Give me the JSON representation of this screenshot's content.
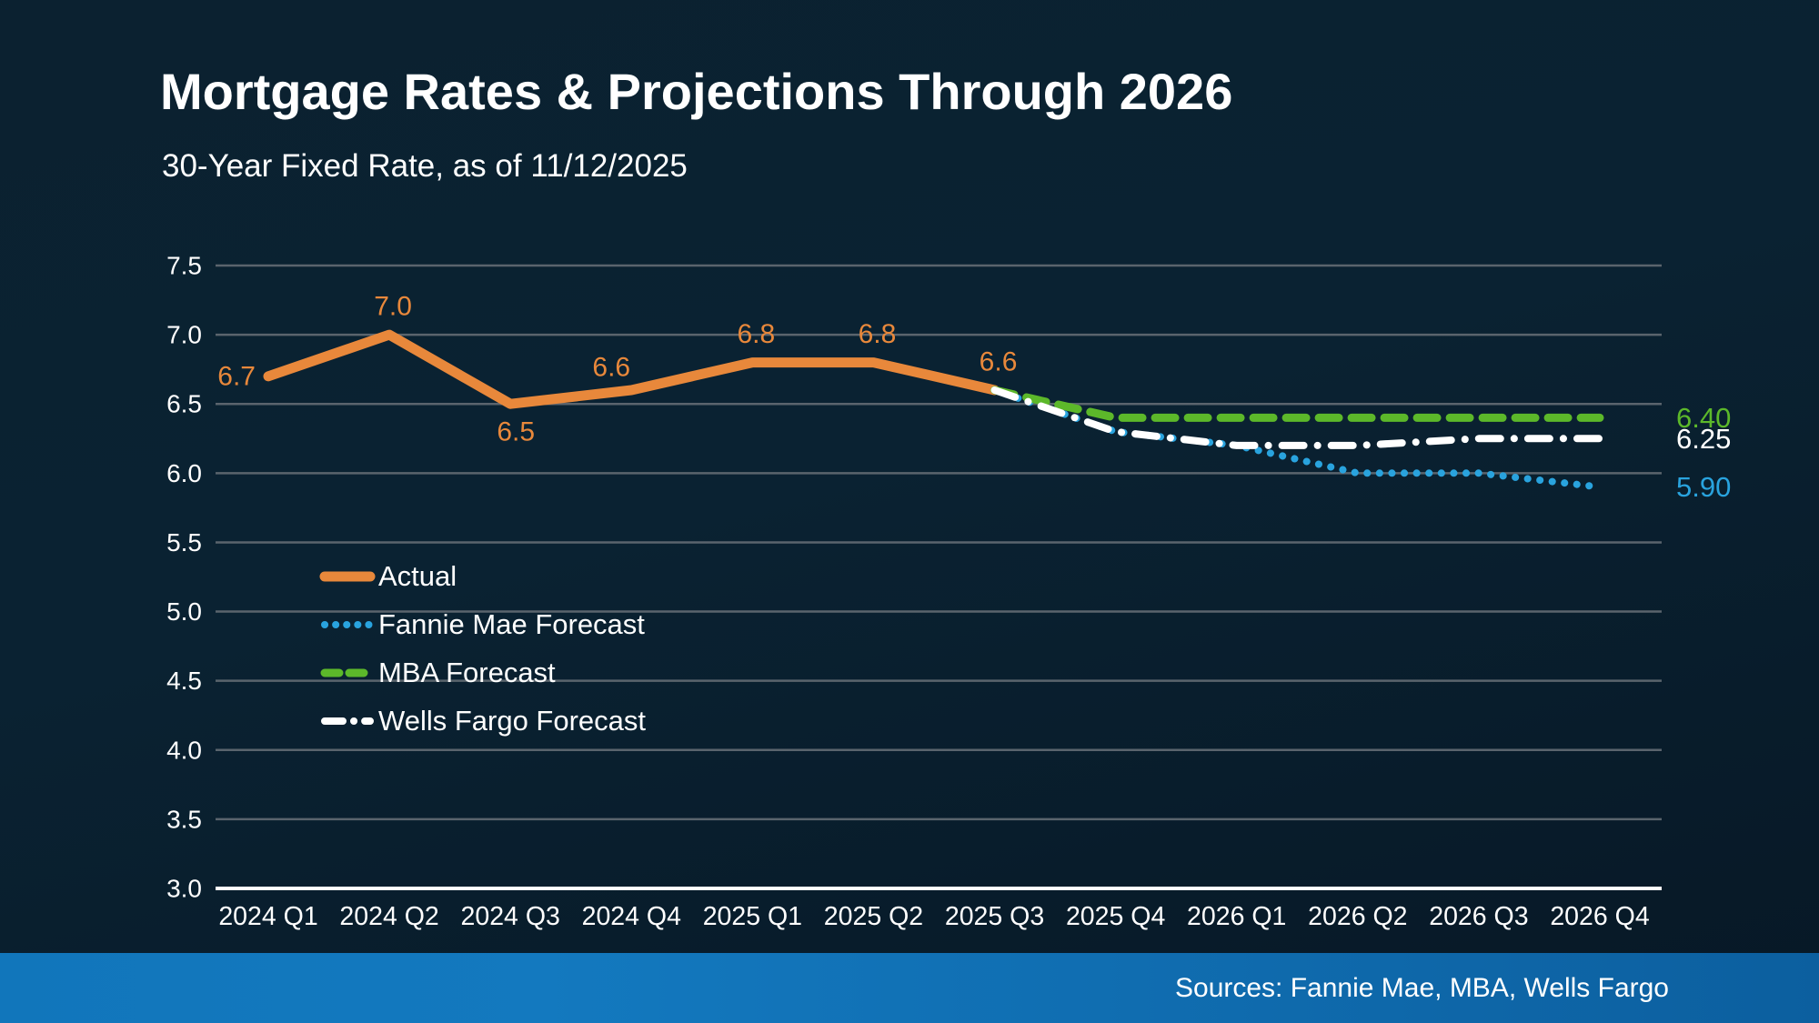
{
  "header": {
    "title": "Mortgage Rates & Projections Through 2026",
    "subtitle": "30-Year Fixed Rate, as of 11/12/2025"
  },
  "footer": {
    "sources": "Sources: Fannie Mae, MBA, Wells Fargo"
  },
  "colors": {
    "background": "#0a2130",
    "gridline": "#5a646d",
    "axis_line": "#ffffff",
    "text": "#ffffff",
    "actual": "#e8883b",
    "fannie_mae": "#29a3de",
    "mba": "#5cb82a",
    "wells_fargo": "#ffffff",
    "footer_left": "#1176bb",
    "footer_right": "#0c5f9f"
  },
  "chart_data": {
    "type": "line",
    "title": "Mortgage Rates & Projections Through 2026",
    "subtitle": "30-Year Fixed Rate, as of 11/12/2025",
    "categories": [
      "2024 Q1",
      "2024 Q2",
      "2024 Q3",
      "2024 Q4",
      "2025 Q1",
      "2025 Q2",
      "2025 Q3",
      "2025 Q4",
      "2026 Q1",
      "2026 Q2",
      "2026 Q3",
      "2026 Q4"
    ],
    "ylim": [
      3.0,
      7.5
    ],
    "ytick_step": 0.5,
    "yticks": [
      "7.5",
      "7.0",
      "6.5",
      "6.0",
      "5.5",
      "5.0",
      "4.5",
      "4.0",
      "3.5",
      "3.0"
    ],
    "grid": true,
    "legend_position": "inside-left",
    "series": [
      {
        "key": "actual",
        "name": "Actual",
        "style": "solid",
        "color": "#e8883b",
        "values": [
          6.7,
          7.0,
          6.5,
          6.6,
          6.8,
          6.8,
          6.6,
          null,
          null,
          null,
          null,
          null
        ],
        "labels": [
          {
            "text": "6.7",
            "pos": "left"
          },
          {
            "text": "7.0",
            "pos": "above"
          },
          {
            "text": "6.5",
            "pos": "below"
          },
          {
            "text": "6.6",
            "pos": "above-left"
          },
          {
            "text": "6.8",
            "pos": "above"
          },
          {
            "text": "6.8",
            "pos": "above"
          },
          {
            "text": "6.6",
            "pos": "above"
          }
        ]
      },
      {
        "key": "fannie_mae",
        "name": "Fannie Mae Forecast",
        "style": "dotted",
        "color": "#29a3de",
        "values": [
          null,
          null,
          null,
          null,
          null,
          null,
          6.6,
          6.3,
          6.2,
          6.0,
          6.0,
          5.9
        ],
        "end_label": "5.90"
      },
      {
        "key": "mba",
        "name": "MBA Forecast",
        "style": "dashed",
        "color": "#5cb82a",
        "values": [
          null,
          null,
          null,
          null,
          null,
          null,
          6.6,
          6.4,
          6.4,
          6.4,
          6.4,
          6.4
        ],
        "end_label": "6.40"
      },
      {
        "key": "wells_fargo",
        "name": "Wells Fargo Forecast",
        "style": "dashdot",
        "color": "#ffffff",
        "values": [
          null,
          null,
          null,
          null,
          null,
          null,
          6.6,
          6.3,
          6.2,
          6.2,
          6.25,
          6.25
        ],
        "end_label": "6.25"
      }
    ]
  }
}
